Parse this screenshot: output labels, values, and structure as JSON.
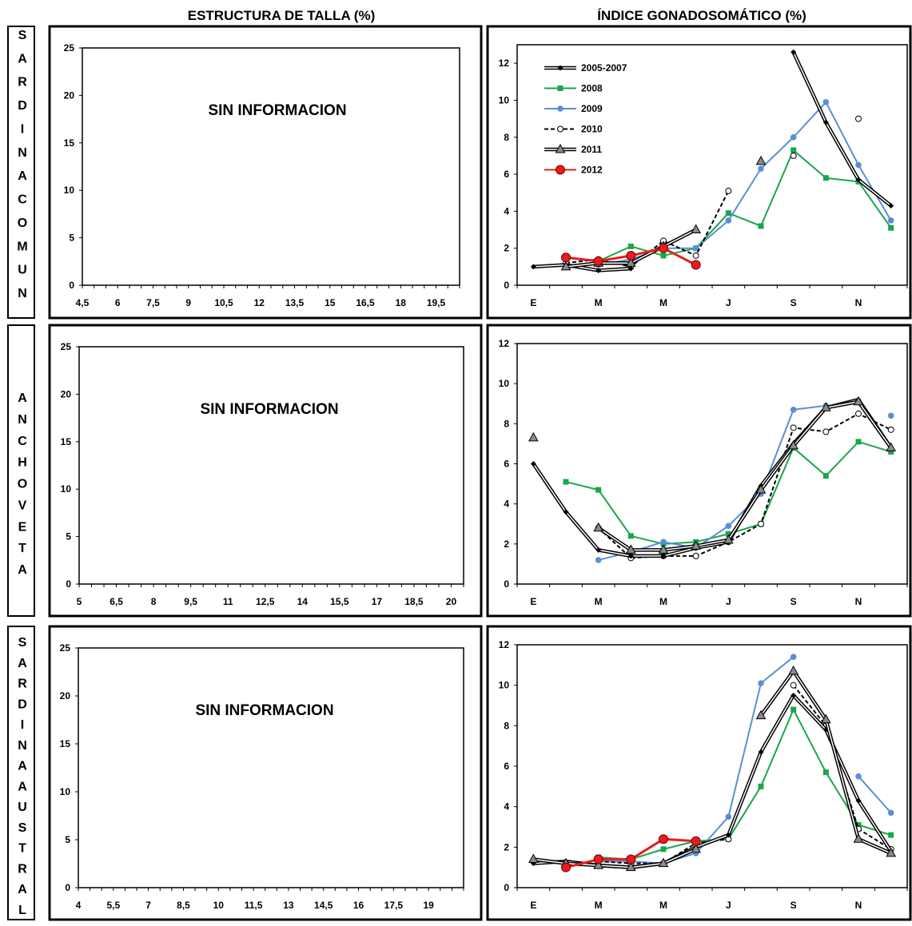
{
  "headers": {
    "left": "ESTRUCTURA DE TALLA (%)",
    "right": "ÍNDICE GONADOSOMÁTICO (%)"
  },
  "species": [
    "SARDINA COMUN",
    "ANCHOVETA",
    "SARDINA AUSTRAL"
  ],
  "species_letters": [
    [
      "S",
      "A",
      "R",
      "D",
      "I",
      "N",
      "A",
      "C",
      "O",
      "M",
      "U",
      "N"
    ],
    [
      "A",
      "N",
      "C",
      "H",
      "O",
      "V",
      "E",
      "T",
      "A"
    ],
    [
      "S",
      "A",
      "R",
      "D",
      "I",
      "N",
      "A",
      "A",
      "U",
      "S",
      "T",
      "R",
      "A",
      "L"
    ]
  ],
  "series_styles": [
    {
      "name": "2005-2007",
      "color": "#000000",
      "marker": "diamond",
      "dash": false,
      "double": true
    },
    {
      "name": "2008",
      "color": "#1aa64b",
      "marker": "square",
      "dash": false,
      "double": false
    },
    {
      "name": "2009",
      "color": "#5b8fd4",
      "marker": "circle",
      "dash": false,
      "double": false
    },
    {
      "name": "2010",
      "color": "#000000",
      "marker": "open-circle",
      "dash": true,
      "double": false
    },
    {
      "name": "2011",
      "color": "#000000",
      "marker": "triangle",
      "dash": false,
      "double": true
    },
    {
      "name": "2012",
      "color": "#e81c1c",
      "marker": "circle-big",
      "dash": false,
      "double": false
    }
  ],
  "chart_data": [
    {
      "type": "bar",
      "species": "SARDINA COMUN",
      "title": "ESTRUCTURA DE TALLA (%)",
      "annotation": "SIN INFORMACION",
      "ylim": [
        0,
        25
      ],
      "yticks": [
        0,
        5,
        10,
        15,
        20,
        25
      ],
      "xlim": [
        4.5,
        20.5
      ],
      "xtick_values": [
        4.5,
        6,
        7.5,
        9,
        10.5,
        12,
        13.5,
        15,
        16.5,
        18,
        19.5
      ],
      "xtick_labels": [
        "4,5",
        "6",
        "7,5",
        "9",
        "10,5",
        "12",
        "13,5",
        "15",
        "16,5",
        "18",
        "19,5"
      ],
      "minor_step": 0.5,
      "values": []
    },
    {
      "type": "line",
      "species": "SARDINA COMUN",
      "title": "ÍNDICE GONADOSOMÁTICO (%)",
      "months": [
        "E",
        "F",
        "M",
        "A",
        "M",
        "J",
        "J",
        "A",
        "S",
        "O",
        "N",
        "D"
      ],
      "month_labels": [
        "E",
        "M",
        "M",
        "J",
        "S",
        "N"
      ],
      "ylim": [
        0,
        13
      ],
      "yticks": [
        0,
        2,
        4,
        6,
        8,
        10,
        12
      ],
      "legend": true,
      "legend_placement": "top-left",
      "series": [
        {
          "name": "2005-2007",
          "values": [
            1.0,
            1.1,
            0.8,
            0.9,
            null,
            null,
            null,
            null,
            12.6,
            8.8,
            5.7,
            4.3
          ]
        },
        {
          "name": "2008",
          "values": [
            null,
            null,
            1.3,
            2.1,
            1.6,
            2.0,
            3.9,
            3.2,
            7.3,
            5.8,
            5.6,
            3.1
          ]
        },
        {
          "name": "2009",
          "values": [
            null,
            null,
            1.1,
            1.4,
            2.0,
            2.0,
            3.5,
            6.3,
            8.0,
            9.9,
            6.5,
            3.5
          ]
        },
        {
          "name": "2010",
          "values": [
            null,
            1.2,
            1.4,
            1.0,
            2.4,
            1.6,
            5.1,
            null,
            7.0,
            null,
            9.0,
            null
          ]
        },
        {
          "name": "2011",
          "values": [
            null,
            1.0,
            1.2,
            1.2,
            2.1,
            3.0,
            null,
            6.7,
            null,
            null,
            null,
            null
          ]
        },
        {
          "name": "2012",
          "values": [
            null,
            1.5,
            1.3,
            1.6,
            2.0,
            1.1,
            null,
            null,
            null,
            null,
            null,
            null
          ]
        }
      ]
    },
    {
      "type": "bar",
      "species": "ANCHOVETA",
      "title": "ESTRUCTURA DE TALLA (%)",
      "annotation": "SIN INFORMACION",
      "ylim": [
        0,
        25
      ],
      "yticks": [
        0,
        5,
        10,
        15,
        20,
        25
      ],
      "xlim": [
        5,
        20.5
      ],
      "xtick_values": [
        5,
        6.5,
        8,
        9.5,
        11,
        12.5,
        14,
        15.5,
        17,
        18.5,
        20
      ],
      "xtick_labels": [
        "5",
        "6,5",
        "8",
        "9,5",
        "11",
        "12,5",
        "14",
        "15,5",
        "17",
        "18,5",
        "20"
      ],
      "minor_step": 0.5,
      "values": []
    },
    {
      "type": "line",
      "species": "ANCHOVETA",
      "title": "ÍNDICE GONADOSOMÁTICO (%)",
      "months": [
        "E",
        "F",
        "M",
        "A",
        "M",
        "J",
        "J",
        "A",
        "S",
        "O",
        "N",
        "D"
      ],
      "month_labels": [
        "E",
        "M",
        "M",
        "J",
        "S",
        "N"
      ],
      "ylim": [
        0,
        12
      ],
      "yticks": [
        0,
        2,
        4,
        6,
        8,
        10,
        12
      ],
      "legend": false,
      "series": [
        {
          "name": "2005-2007",
          "values": [
            6.0,
            3.6,
            1.7,
            1.4,
            1.4,
            1.8,
            2.1,
            4.9,
            7.0,
            8.8,
            9.2,
            6.8
          ]
        },
        {
          "name": "2008",
          "values": [
            null,
            5.1,
            4.7,
            2.4,
            2.0,
            2.1,
            2.5,
            3.0,
            6.8,
            5.4,
            7.1,
            6.6
          ]
        },
        {
          "name": "2009",
          "values": [
            null,
            null,
            1.2,
            1.6,
            2.1,
            1.8,
            2.9,
            4.5,
            8.7,
            8.9,
            null,
            8.4
          ]
        },
        {
          "name": "2010",
          "values": [
            null,
            null,
            2.8,
            1.3,
            1.4,
            1.4,
            2.1,
            3.0,
            7.8,
            7.6,
            8.5,
            7.7
          ]
        },
        {
          "name": "2011",
          "values": [
            7.3,
            null,
            2.8,
            1.7,
            1.7,
            1.9,
            2.2,
            4.7,
            6.9,
            8.8,
            9.1,
            6.8
          ]
        },
        {
          "name": "2012",
          "values": [
            null,
            null,
            null,
            null,
            null,
            null,
            null,
            null,
            null,
            null,
            null,
            null
          ]
        }
      ]
    },
    {
      "type": "bar",
      "species": "SARDINA AUSTRAL",
      "title": "ESTRUCTURA DE TALLA (%)",
      "annotation": "SIN INFORMACION",
      "ylim": [
        0,
        25
      ],
      "yticks": [
        0,
        5,
        10,
        15,
        20,
        25
      ],
      "xlim": [
        4,
        20.5
      ],
      "xtick_values": [
        4,
        5.5,
        7,
        8.5,
        10,
        11.5,
        13,
        14.5,
        16,
        17.5,
        19
      ],
      "xtick_labels": [
        "4",
        "5,5",
        "7",
        "8,5",
        "10",
        "11,5",
        "13",
        "14,5",
        "16",
        "17,5",
        "19"
      ],
      "minor_step": 0.5,
      "values": []
    },
    {
      "type": "line",
      "species": "SARDINA AUSTRAL",
      "title": "ÍNDICE GONADOSOMÁTICO (%)",
      "months": [
        "E",
        "F",
        "M",
        "A",
        "M",
        "J",
        "J",
        "A",
        "S",
        "O",
        "N",
        "D"
      ],
      "month_labels": [
        "E",
        "M",
        "M",
        "J",
        "S",
        "N"
      ],
      "ylim": [
        0,
        12
      ],
      "yticks": [
        0,
        2,
        4,
        6,
        8,
        10,
        12
      ],
      "legend": false,
      "series": [
        {
          "name": "2005-2007",
          "values": [
            1.2,
            1.3,
            1.1,
            1.0,
            1.2,
            2.0,
            2.6,
            6.7,
            9.5,
            7.8,
            4.3,
            1.8
          ]
        },
        {
          "name": "2008",
          "values": [
            null,
            null,
            1.5,
            1.4,
            1.9,
            2.3,
            2.4,
            5.0,
            8.8,
            5.7,
            3.1,
            2.6
          ]
        },
        {
          "name": "2009",
          "values": [
            null,
            null,
            1.3,
            1.3,
            1.2,
            1.7,
            3.5,
            10.1,
            11.4,
            null,
            5.5,
            3.7
          ]
        },
        {
          "name": "2010",
          "values": [
            null,
            null,
            1.3,
            1.2,
            1.2,
            2.2,
            2.4,
            null,
            10.0,
            8.0,
            2.9,
            1.9
          ]
        },
        {
          "name": "2011",
          "values": [
            1.4,
            1.2,
            1.1,
            1.0,
            1.2,
            1.9,
            null,
            8.5,
            10.7,
            8.3,
            2.4,
            1.7
          ]
        },
        {
          "name": "2012",
          "values": [
            null,
            1.0,
            1.4,
            1.4,
            2.4,
            2.3,
            null,
            null,
            null,
            null,
            null,
            null
          ]
        }
      ]
    }
  ]
}
